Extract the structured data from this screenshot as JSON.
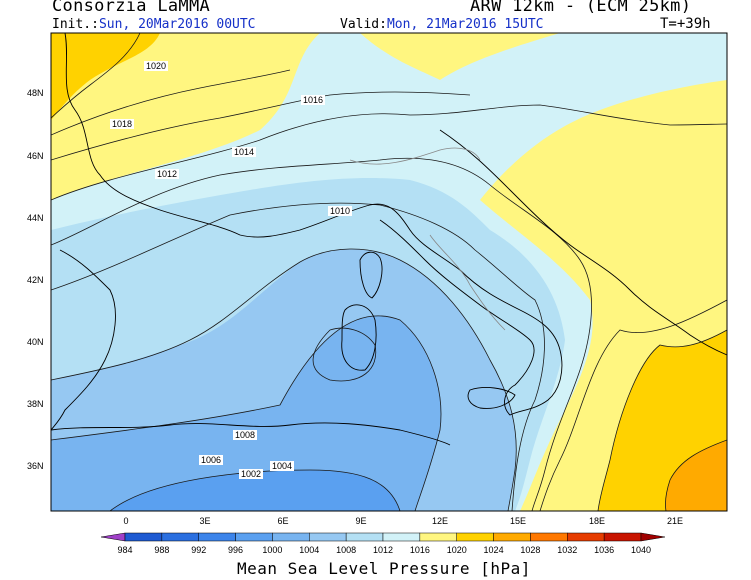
{
  "header": {
    "organization": "Consorzia LaMMA",
    "model": "ARW 12km - (ECM 25km)",
    "init_label": "Init.:",
    "init_value": "Sun, 20Mar2016 00UTC",
    "valid_label": "Valid:",
    "valid_value": "Mon, 21Mar2016 15UTC",
    "forecast_step": "T=+39h"
  },
  "map": {
    "field": "Mean Sea Level Pressure",
    "latitude_ticks": [
      "48N",
      "46N",
      "44N",
      "42N",
      "40N",
      "38N",
      "36N"
    ],
    "longitude_ticks": [
      "0",
      "3E",
      "6E",
      "9E",
      "12E",
      "15E",
      "18E",
      "21E"
    ],
    "isobar_labels": [
      "1020",
      "1018",
      "1016",
      "1014",
      "1012",
      "1010",
      "1008",
      "1006",
      "1004",
      "1002"
    ]
  },
  "colorbar": {
    "title": "Mean Sea Level Pressure [hPa]",
    "levels": [
      "984",
      "988",
      "992",
      "996",
      "1000",
      "1004",
      "1008",
      "1012",
      "1016",
      "1020",
      "1024",
      "1028",
      "1032",
      "1036",
      "1040"
    ],
    "colors": [
      "#a040c8",
      "#1e5ad2",
      "#2a6fe0",
      "#3c84ea",
      "#5aa0f0",
      "#78b4f0",
      "#96c8f2",
      "#b4e0f4",
      "#d2f2f8",
      "#fff680",
      "#ffd200",
      "#ffaa00",
      "#ff7800",
      "#e63c00",
      "#c81400",
      "#a00000"
    ]
  }
}
